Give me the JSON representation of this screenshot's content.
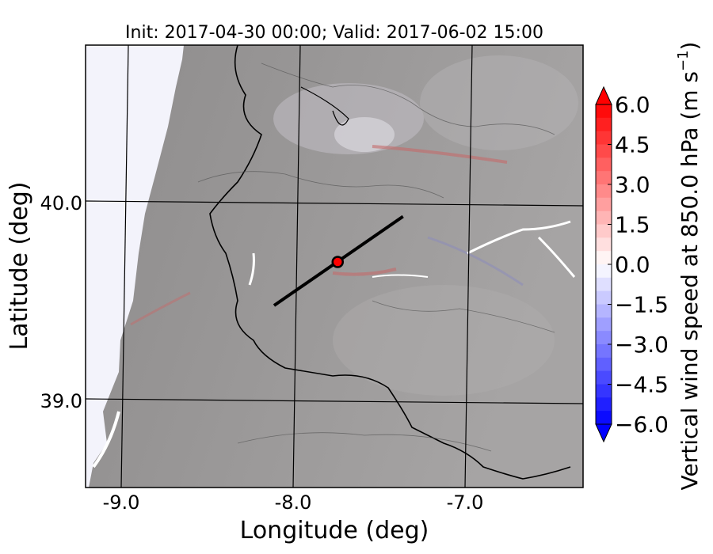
{
  "title": "Init: 2017-04-30 00:00; Valid: 2017-06-02 15:00",
  "xlabel": "Longitude (deg)",
  "ylabel": "Latitude (deg)",
  "xticks": [
    {
      "value": -9.0,
      "label": "-9.0"
    },
    {
      "value": -8.0,
      "label": "-8.0"
    },
    {
      "value": -7.0,
      "label": "-7.0"
    }
  ],
  "yticks": [
    {
      "value": 40.0,
      "label": "40.0"
    },
    {
      "value": 39.0,
      "label": "39.0"
    }
  ],
  "colorbar": {
    "label_main": "Vertical wind speed at 850.0 hPa (m s",
    "label_sup": "−1",
    "label_end": ")",
    "vmin": -6.0,
    "vmax": 6.0,
    "ticks": [
      {
        "value": 6.0,
        "label": "6.0"
      },
      {
        "value": 4.5,
        "label": "4.5"
      },
      {
        "value": 3.0,
        "label": "3.0"
      },
      {
        "value": 1.5,
        "label": "1.5"
      },
      {
        "value": 0.0,
        "label": "0.0"
      },
      {
        "value": -1.5,
        "label": "−1.5"
      },
      {
        "value": -3.0,
        "label": "−3.0"
      },
      {
        "value": -4.5,
        "label": "−4.5"
      },
      {
        "value": -6.0,
        "label": "−6.0"
      }
    ],
    "colors": {
      "max": "#ff0000",
      "min": "#0000ff",
      "mid": "#ffffff"
    }
  },
  "cross_section": {
    "start": [
      -8.12,
      39.48
    ],
    "end": [
      -7.37,
      39.93
    ]
  },
  "marker": {
    "lon": -7.75,
    "lat": 39.7,
    "color": "#ff0000"
  }
}
